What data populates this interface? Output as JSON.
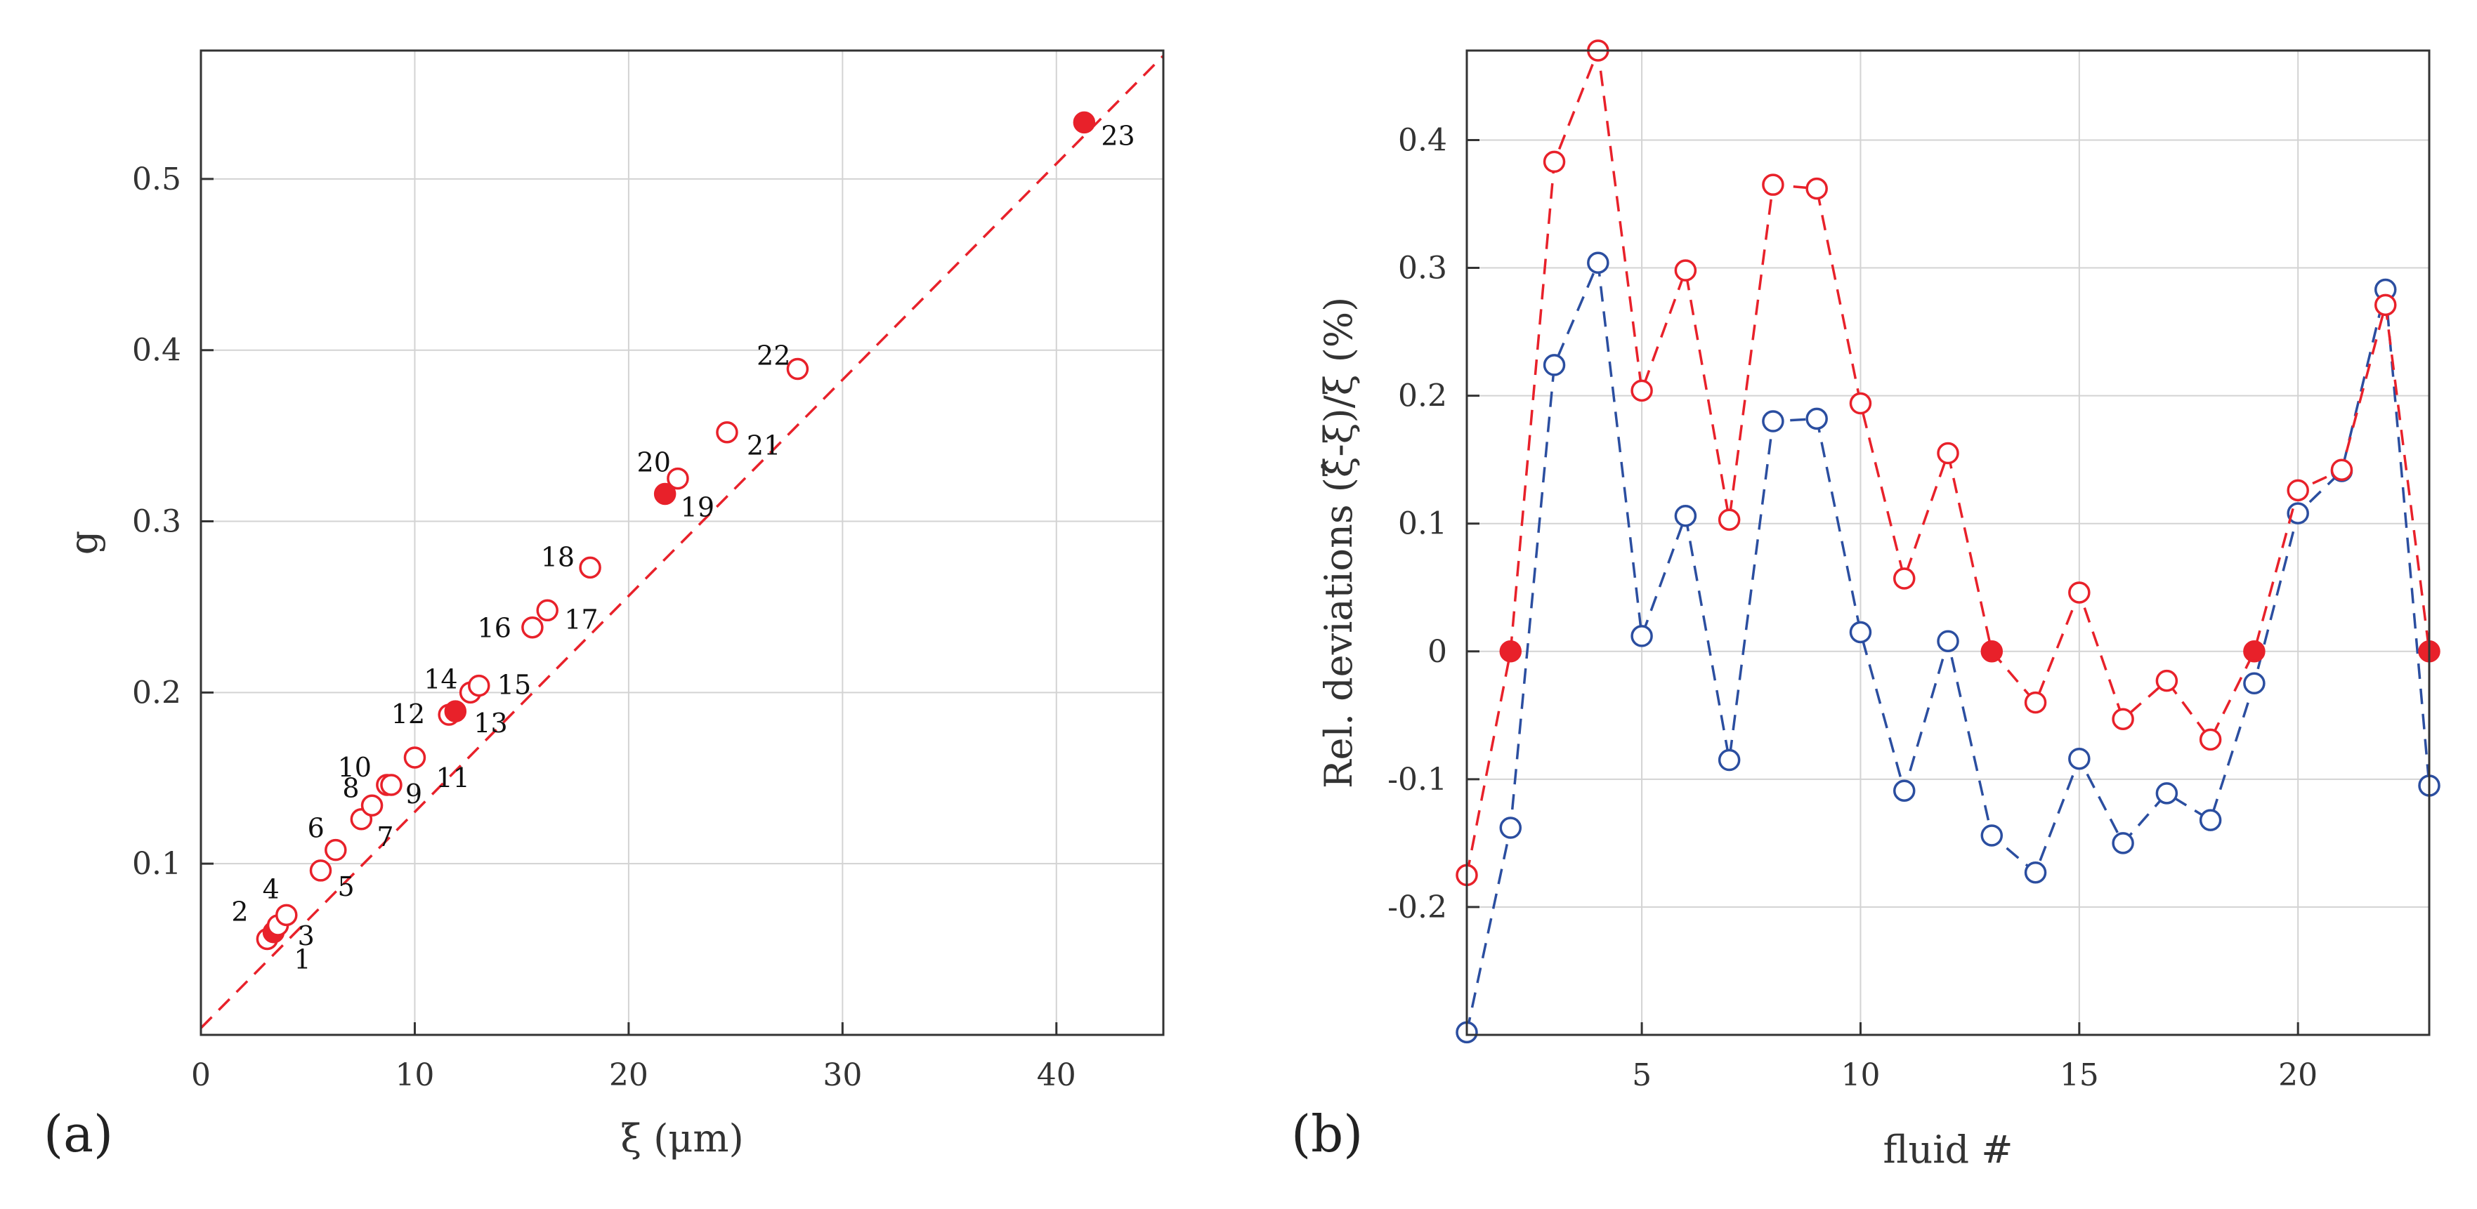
{
  "colors": {
    "red": "#e8212a",
    "blue": "#2b4ea0",
    "axis": "#333333",
    "grid": "#d3d3d3"
  },
  "chart_data": [
    {
      "panel": "(a)",
      "type": "scatter",
      "xlabel": "ξ (μm)",
      "ylabel": "g",
      "xlim": [
        0,
        45
      ],
      "ylim": [
        0,
        0.575
      ],
      "xticks": [
        0,
        10,
        20,
        30,
        40
      ],
      "yticks": [
        0.1,
        0.2,
        0.3,
        0.4,
        0.5
      ],
      "grid": true,
      "fit_line": {
        "x": [
          0,
          45
        ],
        "y": [
          0.004,
          0.572
        ],
        "style": "dashed",
        "color": "#e8212a"
      },
      "points": [
        {
          "label": "1",
          "x": 3.1,
          "y": 0.056,
          "filled": false
        },
        {
          "label": "2",
          "x": 3.4,
          "y": 0.06,
          "filled": true
        },
        {
          "label": "3",
          "x": 3.6,
          "y": 0.064,
          "filled": false
        },
        {
          "label": "4",
          "x": 4.0,
          "y": 0.07,
          "filled": false
        },
        {
          "label": "5",
          "x": 5.6,
          "y": 0.096,
          "filled": false
        },
        {
          "label": "6",
          "x": 6.3,
          "y": 0.108,
          "filled": false
        },
        {
          "label": "7",
          "x": 7.5,
          "y": 0.126,
          "filled": false
        },
        {
          "label": "8",
          "x": 8.0,
          "y": 0.134,
          "filled": false
        },
        {
          "label": "9",
          "x": 8.7,
          "y": 0.146,
          "filled": false
        },
        {
          "label": "10",
          "x": 8.9,
          "y": 0.146,
          "filled": false
        },
        {
          "label": "11",
          "x": 10.0,
          "y": 0.162,
          "filled": false
        },
        {
          "label": "12",
          "x": 11.6,
          "y": 0.187,
          "filled": false
        },
        {
          "label": "13",
          "x": 11.9,
          "y": 0.189,
          "filled": true
        },
        {
          "label": "14",
          "x": 12.6,
          "y": 0.2,
          "filled": false
        },
        {
          "label": "15",
          "x": 13.0,
          "y": 0.204,
          "filled": false
        },
        {
          "label": "16",
          "x": 15.5,
          "y": 0.238,
          "filled": false
        },
        {
          "label": "17",
          "x": 16.2,
          "y": 0.248,
          "filled": false
        },
        {
          "label": "18",
          "x": 18.2,
          "y": 0.273,
          "filled": false
        },
        {
          "label": "19",
          "x": 21.7,
          "y": 0.316,
          "filled": true
        },
        {
          "label": "20",
          "x": 22.3,
          "y": 0.325,
          "filled": false
        },
        {
          "label": "21",
          "x": 24.6,
          "y": 0.352,
          "filled": false
        },
        {
          "label": "22",
          "x": 27.9,
          "y": 0.389,
          "filled": false
        },
        {
          "label": "23",
          "x": 41.3,
          "y": 0.533,
          "filled": true
        }
      ]
    },
    {
      "panel": "(b)",
      "type": "line",
      "xlabel": "fluid #",
      "ylabel": "Rel. deviations (ξ̂-ξ)/ξ  (%)",
      "xlim": [
        1,
        23
      ],
      "ylim": [
        -0.3,
        0.47
      ],
      "xticks": [
        5,
        10,
        15,
        20
      ],
      "yticks": [
        -0.2,
        -0.1,
        0,
        0.1,
        0.2,
        0.3,
        0.4
      ],
      "ytick_labels": [
        "-0.2",
        "-0.1",
        "0",
        "0.1",
        "0.2",
        "0.3",
        "0.4"
      ],
      "grid": true,
      "x": [
        1,
        2,
        3,
        4,
        5,
        6,
        7,
        8,
        9,
        10,
        11,
        12,
        13,
        14,
        15,
        16,
        17,
        18,
        19,
        20,
        21,
        22,
        23
      ],
      "series": [
        {
          "name": "red",
          "color": "#e8212a",
          "style": "dashed",
          "values": [
            -0.175,
            0,
            0.383,
            0.47,
            0.204,
            0.298,
            0.103,
            0.365,
            0.362,
            0.194,
            0.057,
            0.155,
            0,
            -0.04,
            0.046,
            -0.053,
            -0.023,
            -0.069,
            0,
            0.126,
            0.142,
            0.271,
            0
          ],
          "filled_at": [
            2,
            13,
            19,
            23
          ]
        },
        {
          "name": "blue",
          "color": "#2b4ea0",
          "style": "dashed",
          "values": [
            -0.298,
            -0.138,
            0.224,
            0.304,
            0.012,
            0.106,
            -0.085,
            0.18,
            0.182,
            0.015,
            -0.109,
            0.008,
            -0.144,
            -0.173,
            -0.084,
            -0.15,
            -0.111,
            -0.132,
            -0.025,
            0.108,
            0.141,
            0.283,
            -0.105
          ],
          "filled_at": []
        }
      ]
    }
  ]
}
